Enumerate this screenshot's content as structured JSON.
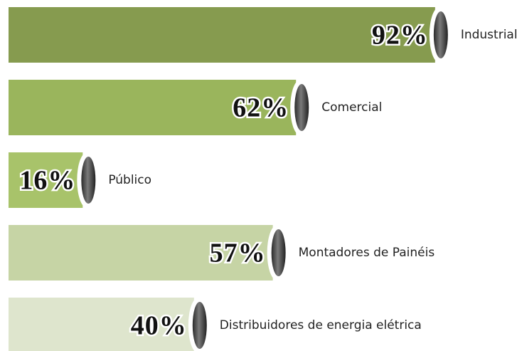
{
  "chart_data": {
    "type": "bar",
    "orientation": "horizontal",
    "categories": [
      "Industrial",
      "Comercial",
      "Público",
      "Montadores de Painéis",
      "Distribuidores de energia elétrica"
    ],
    "values": [
      92,
      62,
      16,
      57,
      40
    ],
    "value_labels": [
      "92%",
      "62%",
      "16%",
      "57%",
      "40%"
    ],
    "colors": [
      "#869b4f",
      "#9ab55c",
      "#a8c36a",
      "#c6d4a5",
      "#dee5cd"
    ]
  }
}
